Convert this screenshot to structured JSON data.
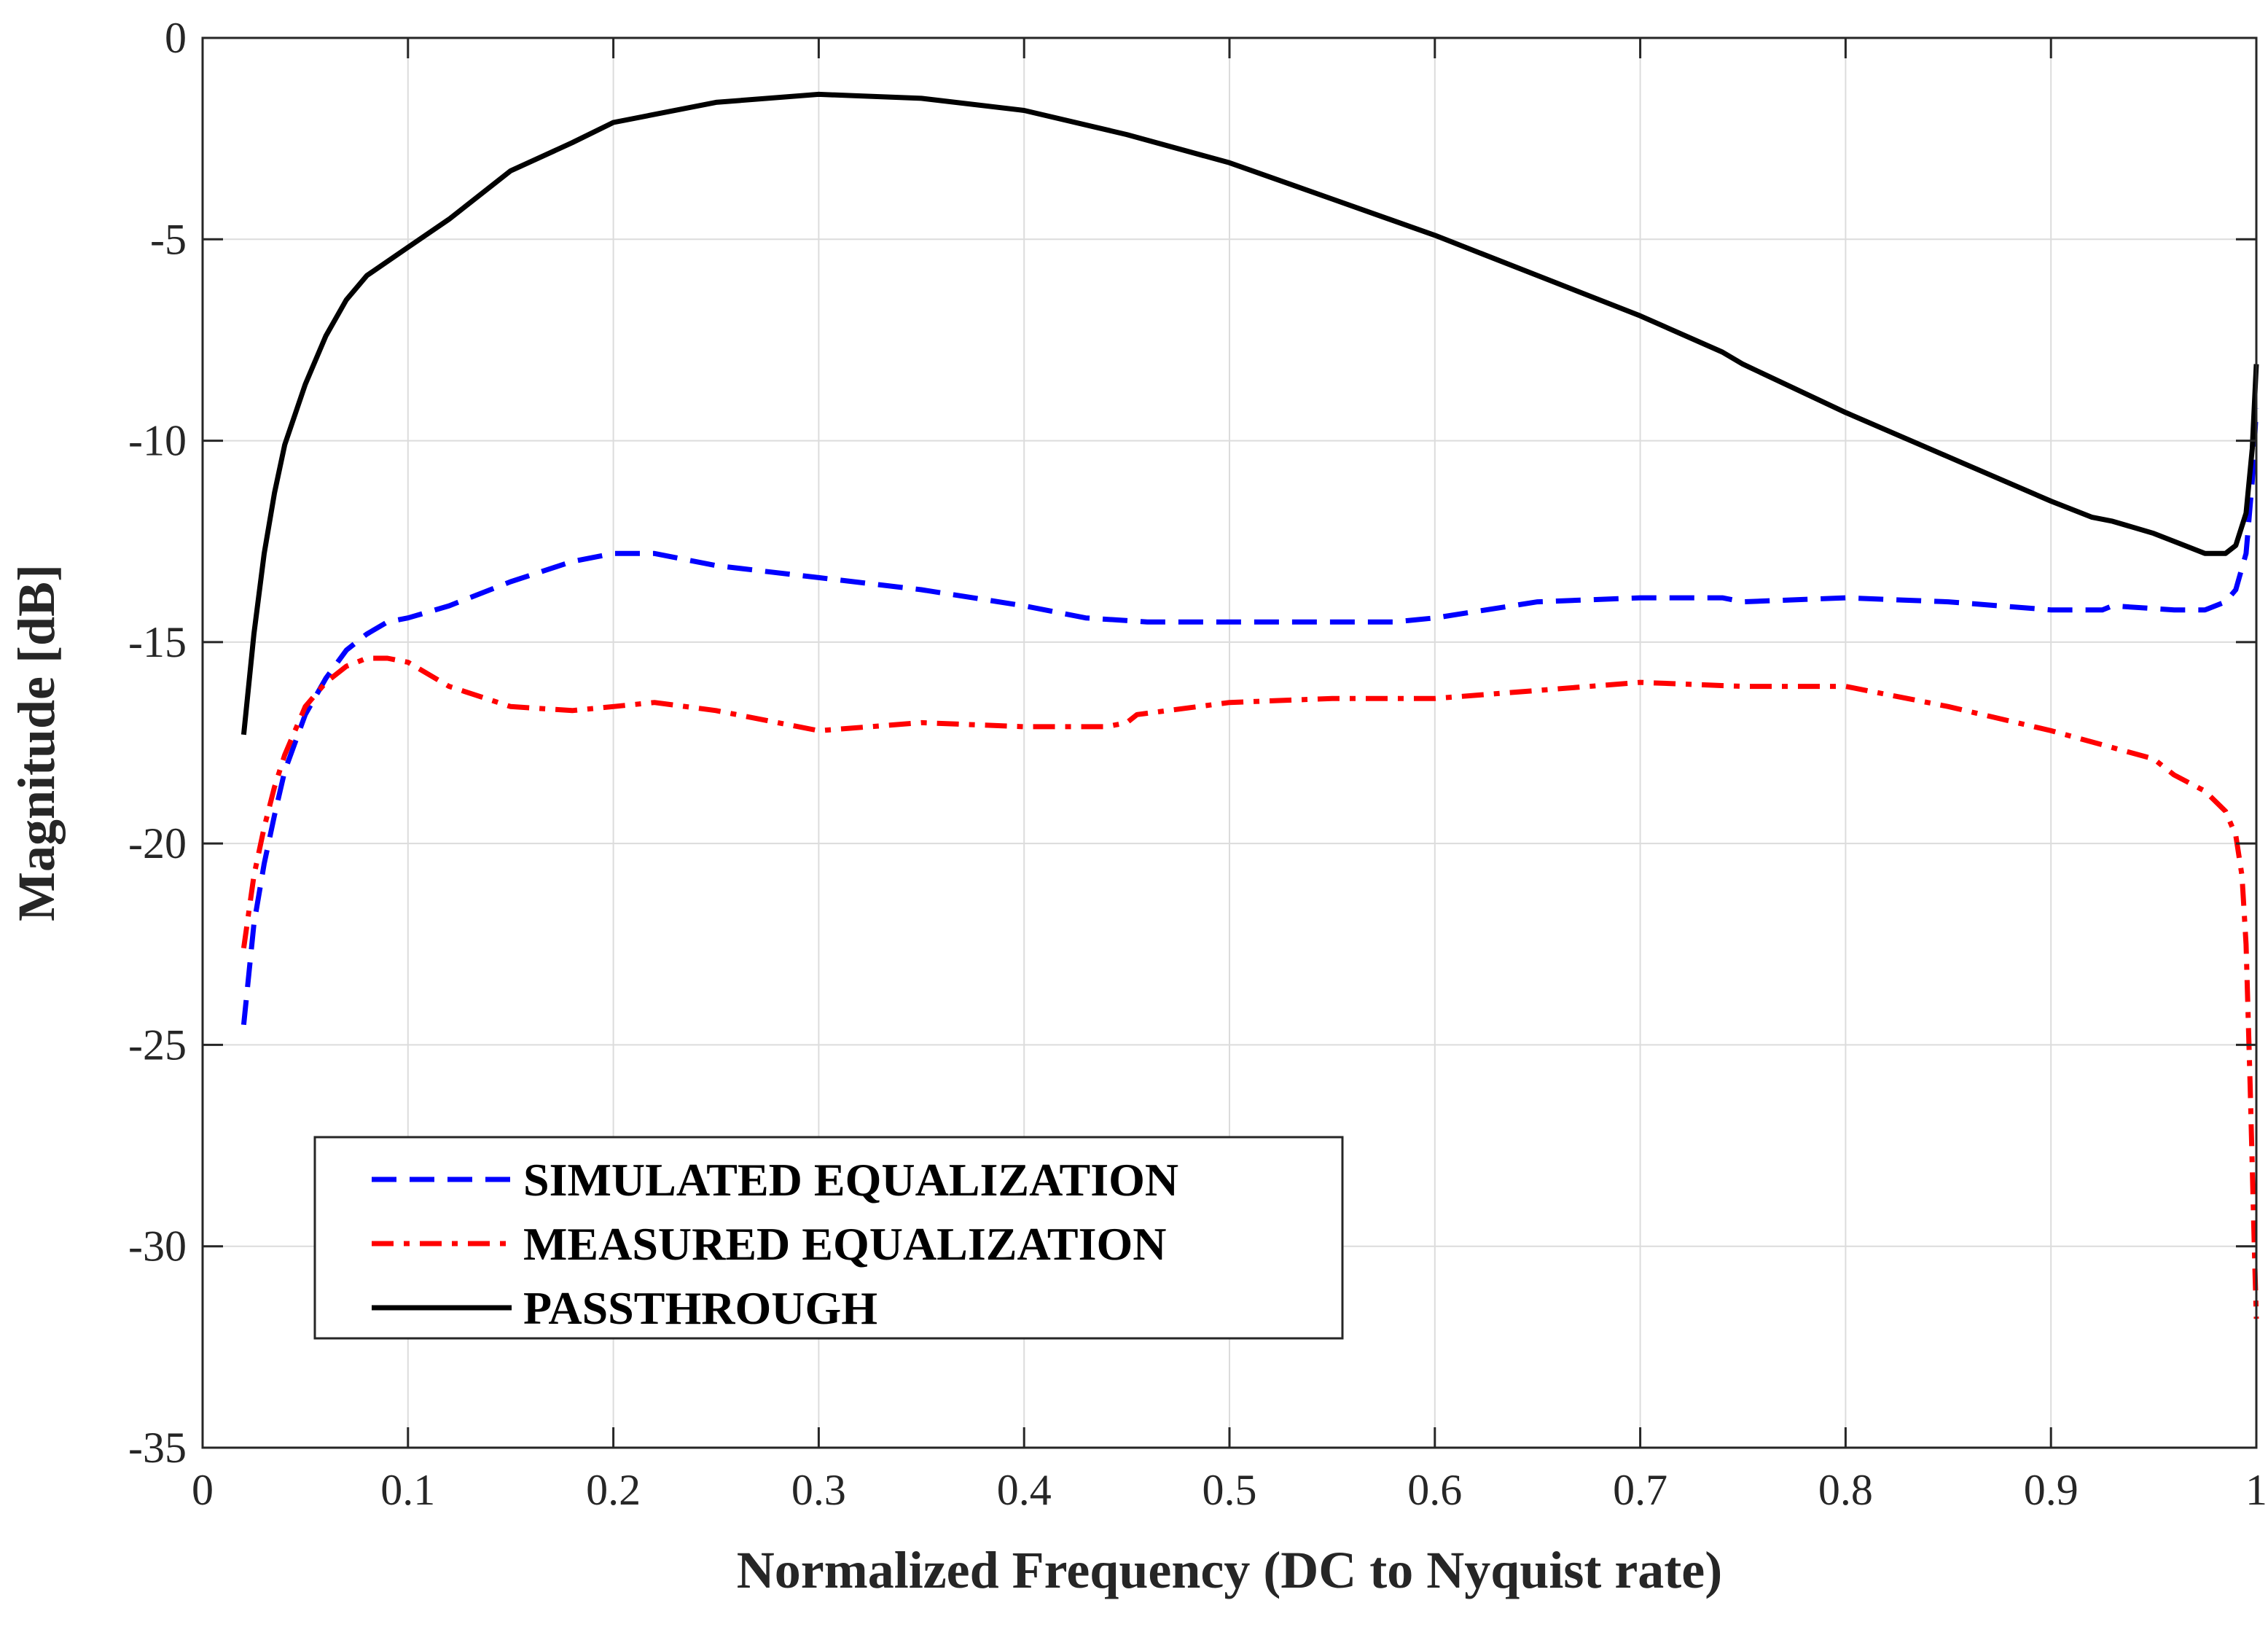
{
  "chart_data": {
    "type": "line",
    "title": "",
    "xlabel": "Normalized Frequency (DC to Nyquist rate)",
    "ylabel": "Magnitude [dB]",
    "xlim": [
      0,
      1
    ],
    "ylim": [
      -35,
      0
    ],
    "xticks": [
      0,
      0.1,
      0.2,
      0.3,
      0.4,
      0.5,
      0.6,
      0.7,
      0.8,
      0.9,
      1
    ],
    "xtick_labels": [
      "0",
      "0.1",
      "0.2",
      "0.3",
      "0.4",
      "0.5",
      "0.6",
      "0.7",
      "0.8",
      "0.9",
      "1"
    ],
    "yticks": [
      0,
      -5,
      -10,
      -15,
      -20,
      -25,
      -30,
      -35
    ],
    "ytick_labels": [
      "0",
      "-5",
      "-10",
      "-15",
      "-20",
      "-25",
      "-30",
      "-35"
    ],
    "grid": true,
    "legend_position": "bottom-left",
    "series": [
      {
        "name": "SIMULATED EQUALIZATION",
        "color": "#0000ff",
        "style": "dashed",
        "x": [
          0.02,
          0.025,
          0.03,
          0.035,
          0.04,
          0.05,
          0.06,
          0.07,
          0.08,
          0.09,
          0.1,
          0.12,
          0.15,
          0.18,
          0.2,
          0.22,
          0.25,
          0.3,
          0.35,
          0.4,
          0.43,
          0.46,
          0.5,
          0.55,
          0.58,
          0.6,
          0.65,
          0.7,
          0.74,
          0.75,
          0.8,
          0.85,
          0.9,
          0.925,
          0.93,
          0.96,
          0.975,
          0.985,
          0.99,
          0.995,
          0.998,
          1.0
        ],
        "y": [
          -24.5,
          -22.0,
          -20.5,
          -19.3,
          -18.2,
          -16.8,
          -15.9,
          -15.2,
          -14.8,
          -14.5,
          -14.4,
          -14.1,
          -13.5,
          -13.0,
          -12.8,
          -12.8,
          -13.1,
          -13.4,
          -13.7,
          -14.1,
          -14.4,
          -14.5,
          -14.5,
          -14.5,
          -14.5,
          -14.4,
          -14.0,
          -13.9,
          -13.9,
          -14.0,
          -13.9,
          -14.0,
          -14.2,
          -14.2,
          -14.1,
          -14.2,
          -14.2,
          -14.0,
          -13.7,
          -12.8,
          -11.0,
          -9.2
        ]
      },
      {
        "name": "MEASURED EQUALIZATION",
        "color": "#ff0000",
        "style": "dashdot",
        "x": [
          0.02,
          0.025,
          0.03,
          0.035,
          0.04,
          0.05,
          0.06,
          0.07,
          0.08,
          0.09,
          0.1,
          0.12,
          0.15,
          0.18,
          0.2,
          0.22,
          0.25,
          0.3,
          0.35,
          0.4,
          0.44,
          0.45,
          0.455,
          0.5,
          0.55,
          0.6,
          0.65,
          0.7,
          0.75,
          0.8,
          0.85,
          0.9,
          0.95,
          0.96,
          0.975,
          0.985,
          0.99,
          0.993,
          0.995,
          0.997,
          0.999,
          1.0
        ],
        "y": [
          -22.6,
          -20.8,
          -19.6,
          -18.6,
          -17.8,
          -16.6,
          -16.0,
          -15.6,
          -15.4,
          -15.4,
          -15.5,
          -16.1,
          -16.6,
          -16.7,
          -16.6,
          -16.5,
          -16.7,
          -17.2,
          -17.0,
          -17.1,
          -17.1,
          -17.0,
          -16.8,
          -16.5,
          -16.4,
          -16.4,
          -16.2,
          -16.0,
          -16.1,
          -16.1,
          -16.6,
          -17.2,
          -17.9,
          -18.3,
          -18.7,
          -19.2,
          -19.8,
          -20.8,
          -22.5,
          -26.0,
          -30.0,
          -31.8
        ]
      },
      {
        "name": "PASSTHROUGH",
        "color": "#000000",
        "style": "solid",
        "x": [
          0.02,
          0.025,
          0.03,
          0.035,
          0.04,
          0.05,
          0.06,
          0.07,
          0.08,
          0.1,
          0.12,
          0.15,
          0.18,
          0.2,
          0.25,
          0.3,
          0.35,
          0.4,
          0.45,
          0.5,
          0.55,
          0.6,
          0.65,
          0.7,
          0.74,
          0.75,
          0.8,
          0.85,
          0.9,
          0.92,
          0.93,
          0.95,
          0.965,
          0.975,
          0.985,
          0.99,
          0.995,
          0.998,
          1.0
        ],
        "y": [
          -17.3,
          -14.8,
          -12.8,
          -11.3,
          -10.1,
          -8.6,
          -7.4,
          -6.5,
          -5.9,
          -5.2,
          -4.5,
          -3.3,
          -2.6,
          -2.1,
          -1.6,
          -1.4,
          -1.5,
          -1.8,
          -2.4,
          -3.1,
          -4.0,
          -4.9,
          -5.9,
          -6.9,
          -7.8,
          -8.1,
          -9.3,
          -10.4,
          -11.5,
          -11.9,
          -12.0,
          -12.3,
          -12.6,
          -12.8,
          -12.8,
          -12.6,
          -11.8,
          -10.2,
          -8.1
        ]
      }
    ]
  }
}
